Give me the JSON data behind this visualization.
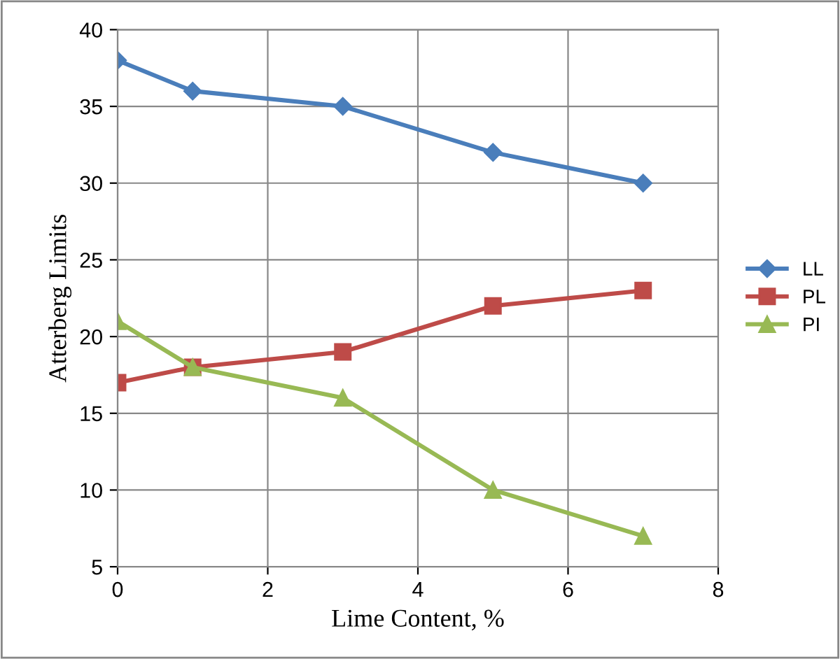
{
  "chart_data": {
    "type": "line",
    "xlabel": "Lime Content, %",
    "ylabel": "Atterberg Limits",
    "x": [
      0,
      1,
      3,
      5,
      7
    ],
    "series": [
      {
        "name": "LL",
        "color": "#4a7ebb",
        "marker": "diamond",
        "values": [
          38,
          36,
          35,
          32,
          30
        ]
      },
      {
        "name": "PL",
        "color": "#be4b48",
        "marker": "square",
        "values": [
          17,
          18,
          19,
          22,
          23
        ]
      },
      {
        "name": "PI",
        "color": "#98b954",
        "marker": "triangle",
        "values": [
          21,
          18,
          16,
          10,
          7
        ]
      }
    ],
    "xlim": [
      0,
      8
    ],
    "xticks": [
      0,
      2,
      4,
      6,
      8
    ],
    "ylim": [
      5,
      40
    ],
    "yticks": [
      5,
      10,
      15,
      20,
      25,
      30,
      35,
      40
    ],
    "grid": true,
    "legend": "right",
    "line_style": "solid"
  }
}
